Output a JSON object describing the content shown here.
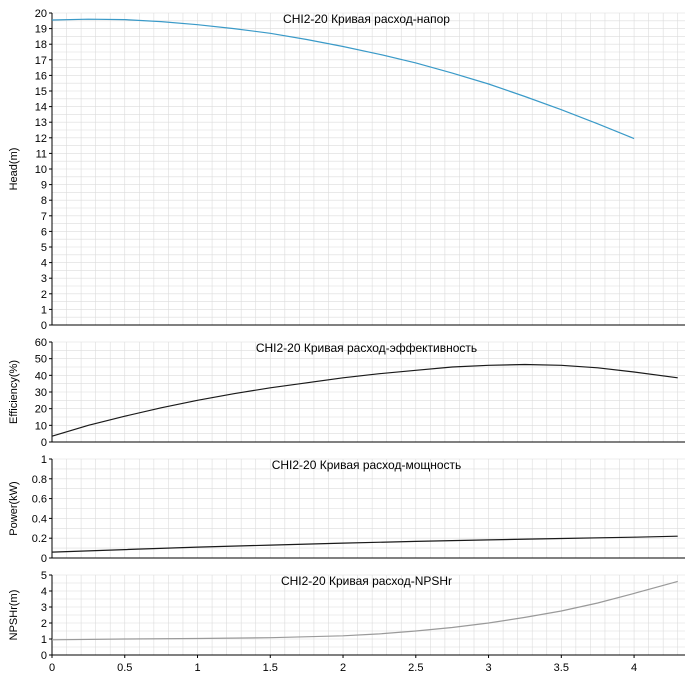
{
  "chart_data": [
    {
      "type": "line",
      "title": "CHI2-20 Кривая расход-напор",
      "xlabel": "",
      "ylabel": "Head(m)",
      "xlim": [
        0,
        4.35
      ],
      "ylim": [
        0,
        20
      ],
      "yticks": [
        0,
        1,
        2,
        3,
        4,
        5,
        6,
        7,
        8,
        9,
        10,
        11,
        12,
        13,
        14,
        15,
        16,
        17,
        18,
        19,
        20
      ],
      "grid": true,
      "series": [
        {
          "color": "#3a9ac8",
          "x": [
            0,
            0.25,
            0.5,
            0.75,
            1,
            1.25,
            1.5,
            1.75,
            2,
            2.25,
            2.5,
            2.75,
            3,
            3.25,
            3.5,
            3.75,
            4
          ],
          "y": [
            19.55,
            19.6,
            19.58,
            19.45,
            19.25,
            19.0,
            18.7,
            18.3,
            17.85,
            17.35,
            16.8,
            16.15,
            15.45,
            14.65,
            13.8,
            12.9,
            11.95
          ]
        }
      ]
    },
    {
      "type": "line",
      "title": "CHI2-20 Кривая расход-эффективность",
      "xlabel": "",
      "ylabel": "Efficiency(%)",
      "xlim": [
        0,
        4.35
      ],
      "ylim": [
        0,
        60
      ],
      "yticks": [
        0,
        10,
        20,
        30,
        40,
        50,
        60
      ],
      "grid": true,
      "series": [
        {
          "color": "#1a1a1a",
          "x": [
            0,
            0.25,
            0.5,
            0.75,
            1,
            1.25,
            1.5,
            1.75,
            2,
            2.25,
            2.5,
            2.75,
            3,
            3.25,
            3.5,
            3.75,
            4,
            4.3
          ],
          "y": [
            3.5,
            10,
            15.5,
            20.5,
            25,
            29,
            32.5,
            35.5,
            38.5,
            41,
            43,
            45,
            46,
            46.5,
            46,
            44.5,
            42,
            38.5
          ]
        }
      ]
    },
    {
      "type": "line",
      "title": "CHI2-20 Кривая расход-мощность",
      "xlabel": "",
      "ylabel": "Power(kW)",
      "xlim": [
        0,
        4.35
      ],
      "ylim": [
        0,
        1
      ],
      "yticks": [
        0,
        0.2,
        0.4,
        0.6,
        0.8,
        1
      ],
      "grid": true,
      "series": [
        {
          "color": "#1a1a1a",
          "x": [
            0,
            0.5,
            1,
            1.5,
            2,
            2.5,
            3,
            3.5,
            4,
            4.3
          ],
          "y": [
            0.06,
            0.085,
            0.11,
            0.13,
            0.15,
            0.168,
            0.183,
            0.197,
            0.21,
            0.22
          ]
        }
      ]
    },
    {
      "type": "line",
      "title": "CHI2-20 Кривая расход-NPSHr",
      "xlabel": "",
      "ylabel": "NPSHr(m)",
      "xlim": [
        0,
        4.35
      ],
      "ylim": [
        0,
        5
      ],
      "yticks": [
        0,
        1,
        2,
        3,
        4,
        5
      ],
      "xticks": [
        0,
        0.5,
        1,
        1.5,
        2,
        2.5,
        3,
        3.5,
        4
      ],
      "grid": true,
      "series": [
        {
          "color": "#9a9a9a",
          "x": [
            0,
            0.5,
            1,
            1.5,
            2,
            2.25,
            2.5,
            2.75,
            3,
            3.25,
            3.5,
            3.75,
            4,
            4.3
          ],
          "y": [
            0.95,
            1.0,
            1.03,
            1.08,
            1.2,
            1.32,
            1.5,
            1.72,
            2.0,
            2.35,
            2.75,
            3.25,
            3.85,
            4.6
          ]
        }
      ]
    }
  ]
}
